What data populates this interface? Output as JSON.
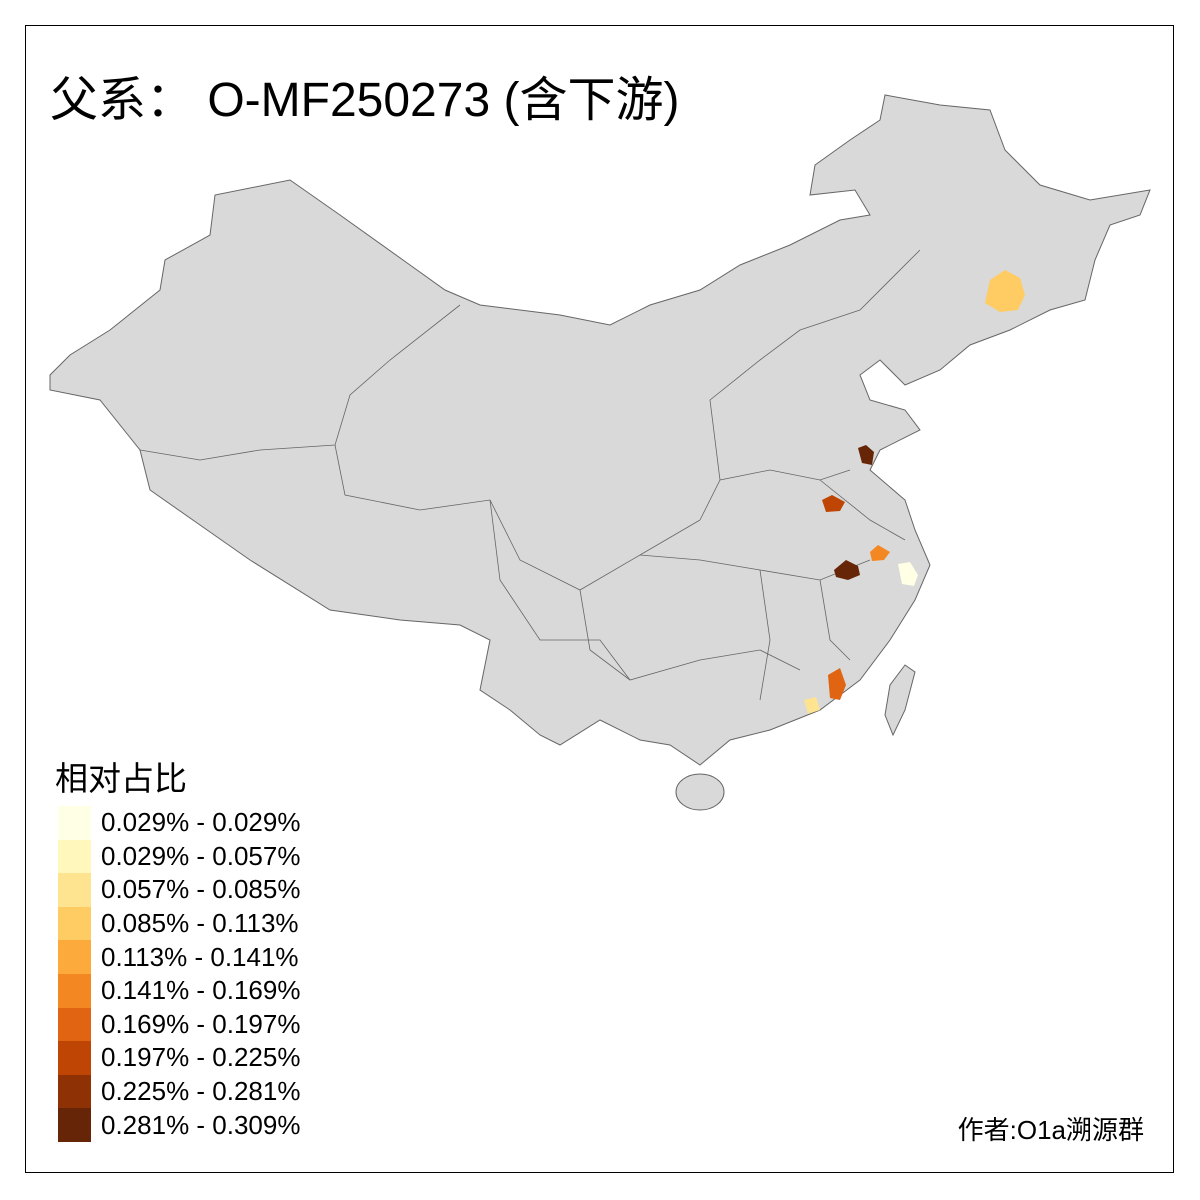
{
  "title": "父系： O-MF250273 (含下游)",
  "legend": {
    "title": "相对占比",
    "items": [
      {
        "label": "0.029% - 0.029%",
        "color": "#FFFFE5"
      },
      {
        "label": "0.029% - 0.057%",
        "color": "#FFF7BC"
      },
      {
        "label": "0.057% - 0.085%",
        "color": "#FEE391"
      },
      {
        "label": "0.085% - 0.113%",
        "color": "#FECC63"
      },
      {
        "label": "0.113% - 0.141%",
        "color": "#FDAA3C"
      },
      {
        "label": "0.141% - 0.169%",
        "color": "#F38822"
      },
      {
        "label": "0.169% - 0.197%",
        "color": "#E06412"
      },
      {
        "label": "0.197% - 0.225%",
        "color": "#BF4504"
      },
      {
        "label": "0.225% - 0.281%",
        "color": "#8E3105"
      },
      {
        "label": "0.281% - 0.309%",
        "color": "#662506"
      }
    ]
  },
  "map": {
    "land_color": "#D9D9D9",
    "border_color": "#666666",
    "no_data_color": "#D9D9D9"
  },
  "author": "作者:O1a溯源群"
}
